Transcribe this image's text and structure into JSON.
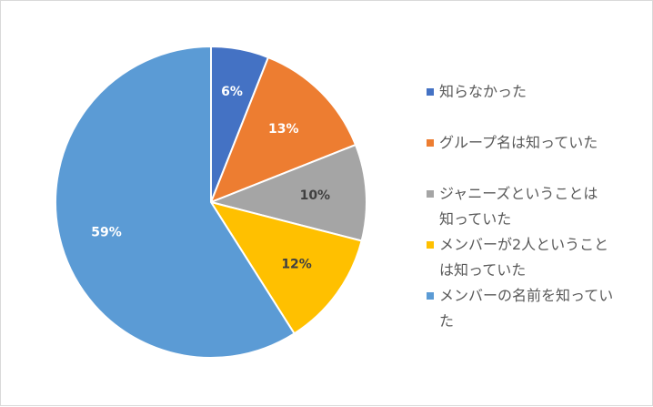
{
  "chart_data": {
    "type": "pie",
    "start_angle_deg": 0,
    "direction": "clockwise",
    "slices": [
      {
        "label": "知らなかった",
        "value": 6,
        "display": "6%",
        "color": "#4472c4",
        "label_color": "#ffffff"
      },
      {
        "label": "グループ名は知っていた",
        "value": 13,
        "display": "13%",
        "color": "#ed7d31",
        "label_color": "#ffffff"
      },
      {
        "label": "ジャニーズということは知っていた",
        "value": 10,
        "display": "10%",
        "color": "#a5a5a5",
        "label_color": "#404040"
      },
      {
        "label": "メンバーが2人ということは知っていた",
        "value": 12,
        "display": "12%",
        "color": "#ffc000",
        "label_color": "#404040"
      },
      {
        "label": "メンバーの名前を知っていた",
        "value": 59,
        "display": "59%",
        "color": "#5b9bd5",
        "label_color": "#ffffff"
      }
    ],
    "legend_position": "right"
  },
  "legend": {
    "items": [
      {
        "text": "知らなかった",
        "color": "#4472c4"
      },
      {
        "text": "グループ名は知っていた",
        "color": "#ed7d31"
      },
      {
        "text": "ジャニーズということは\n知っていた",
        "color": "#a5a5a5"
      },
      {
        "text": "メンバーが2人ということ\nは知っていた",
        "color": "#ffc000"
      },
      {
        "text": "メンバーの名前を知ってい\nた",
        "color": "#5b9bd5"
      }
    ]
  }
}
